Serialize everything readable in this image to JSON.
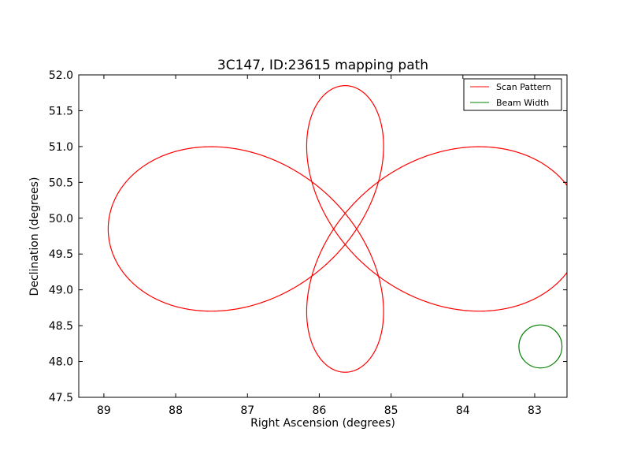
{
  "chart_data": {
    "type": "line",
    "title": "3C147, ID:23615 mapping path",
    "xlabel": "Right Ascension (degrees)",
    "ylabel": "Declination (degrees)",
    "xlim": [
      89.35,
      82.55
    ],
    "ylim": [
      47.5,
      52.0
    ],
    "x_ticks": [
      89,
      88,
      87,
      86,
      85,
      84,
      83
    ],
    "y_ticks": [
      "47.5",
      "48.0",
      "48.5",
      "49.0",
      "49.5",
      "50.0",
      "50.5",
      "51.0",
      "51.5",
      "52.0"
    ],
    "center": {
      "ra": 85.64,
      "dec": 49.85
    },
    "legend_position": "upper right",
    "grid": false,
    "series": [
      {
        "name": "Scan Pattern",
        "color": "#ff0000",
        "ra_amplitude": 3.3,
        "dec_amplitude": 2.0,
        "ra_petal_width": 0.55,
        "dec_petal_width": 0.85,
        "gap_start": 0.03,
        "gap_end": 0.0
      },
      {
        "name": "Beam Width",
        "color": "#008000",
        "center_ra": 82.92,
        "center_dec": 48.21,
        "radius_deg": 0.3
      }
    ]
  }
}
